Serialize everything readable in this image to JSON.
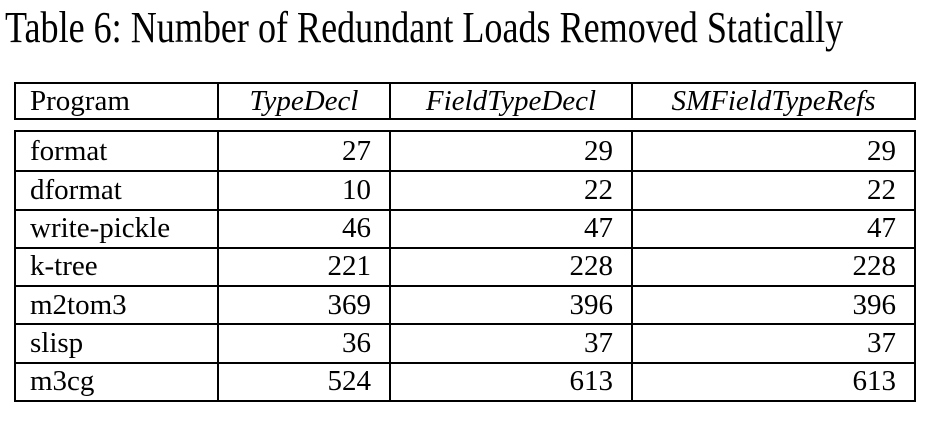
{
  "caption": "Table 6: Number of Redundant Loads Removed Statically",
  "colors": {
    "text": "#000000",
    "background": "#ffffff",
    "border": "#000000"
  },
  "table": {
    "columns": [
      "Program",
      "TypeDecl",
      "FieldTypeDecl",
      "SMFieldTypeRefs"
    ],
    "rows": [
      {
        "program": "format",
        "values": [
          "27",
          "29",
          "29"
        ]
      },
      {
        "program": "dformat",
        "values": [
          "10",
          "22",
          "22"
        ]
      },
      {
        "program": "write-pickle",
        "values": [
          "46",
          "47",
          "47"
        ]
      },
      {
        "program": "k-tree",
        "values": [
          "221",
          "228",
          "228"
        ]
      },
      {
        "program": "m2tom3",
        "values": [
          "369",
          "396",
          "396"
        ]
      },
      {
        "program": "slisp",
        "values": [
          "36",
          "37",
          "37"
        ]
      },
      {
        "program": "m3cg",
        "values": [
          "524",
          "613",
          "613"
        ]
      }
    ]
  }
}
